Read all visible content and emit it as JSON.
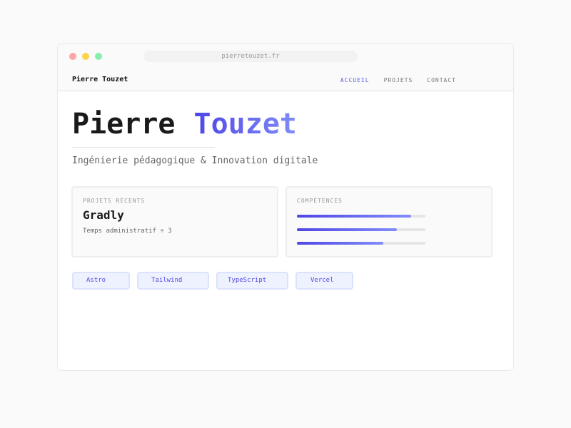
{
  "browser": {
    "url": "pierretouzet.fr",
    "dots": [
      "#fca5a5",
      "#fcd34d",
      "#86efac"
    ]
  },
  "nav": {
    "brand": "Pierre Touzet",
    "links": [
      {
        "label": "ACCUEIL",
        "active": true
      },
      {
        "label": "PROJETS"
      },
      {
        "label": "CONTACT"
      }
    ]
  },
  "hero": {
    "first": "Pierre",
    "last": "Touzet",
    "subtitle": "Ingénierie pédagogique & Innovation digitale"
  },
  "projects": {
    "label": "PROJETS RÉCENTS",
    "title": "Gradly",
    "desc": "Temps administratif ÷ 3"
  },
  "skills": {
    "label": "COMPÉTENCES",
    "levels": [
      89,
      78,
      67
    ]
  },
  "tags": [
    "Astro",
    "Tailwind",
    "TypeScript",
    "Vercel"
  ],
  "colors": {
    "accent": "#4f46e5",
    "accent_light": "#818cf8"
  }
}
